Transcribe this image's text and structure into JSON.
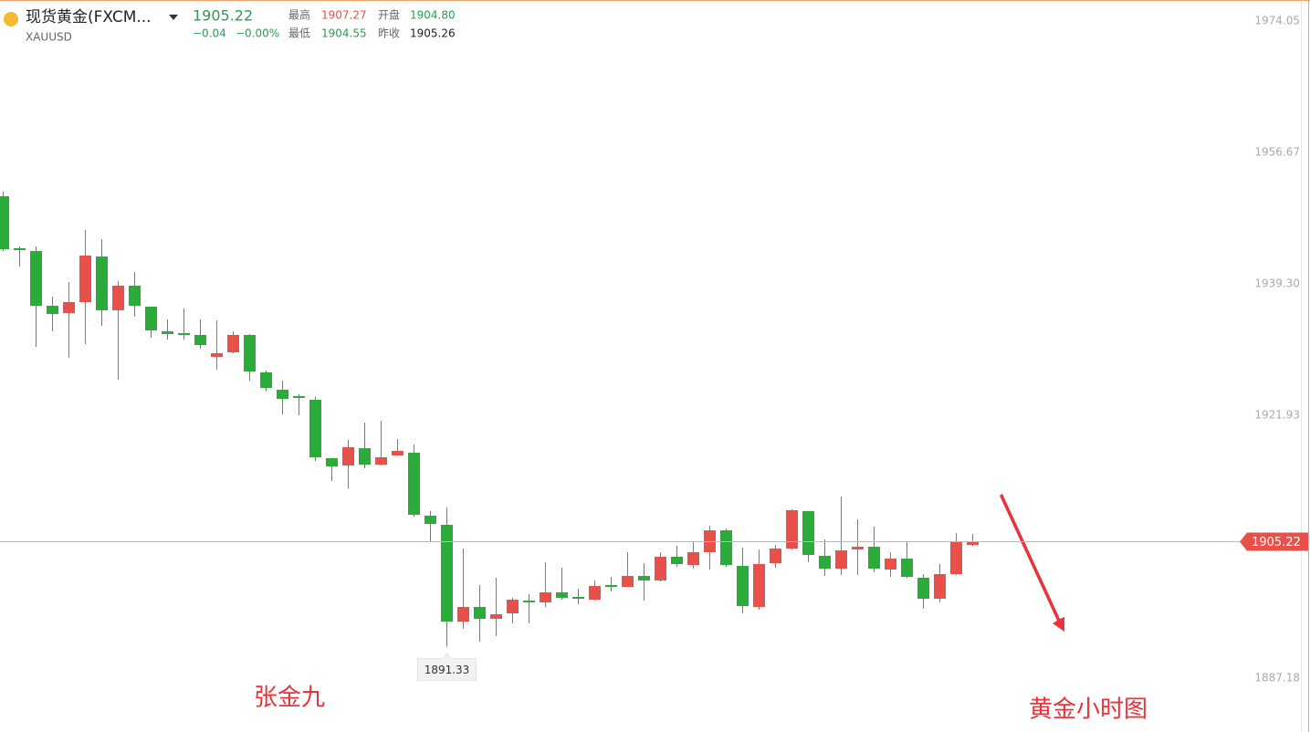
{
  "header": {
    "name": "现货黄金(FXCM...",
    "symbol": "XAUUSD",
    "price": "1905.22",
    "change": "−0.04",
    "change_pct": "−0.00%",
    "high_label": "最高",
    "high": "1907.27",
    "open_label": "开盘",
    "open": "1904.80",
    "low_label": "最低",
    "low": "1904.55",
    "prev_close_label": "昨收",
    "prev_close": "1905.26"
  },
  "chart_data": {
    "type": "candlestick",
    "up_color": "#e8504a",
    "down_color": "#2bab3a",
    "grid": false,
    "ylim": [
      1880.3,
      1976.83
    ],
    "yticks": [
      1974.05,
      1956.67,
      {
        "value": 1939.3,
        "label": "1939.30"
      },
      1921.93,
      1887.18
    ],
    "last_price": 1905.22,
    "min_label": 1891.33,
    "min_index": 27,
    "annotations": [
      "张金九",
      "黄金小时图"
    ],
    "open": [
      1950.89,
      1944.01,
      1943.65,
      1936.41,
      1935.44,
      1936.89,
      1942.92,
      1935.81,
      1939.06,
      1936.29,
      1933.03,
      1932.79,
      1932.55,
      1929.65,
      1930.25,
      1932.55,
      1927.6,
      1925.31,
      1924.46,
      1923.98,
      1916.26,
      1915.29,
      1917.58,
      1915.41,
      1916.62,
      1916.98,
      1908.66,
      1907.45,
      1894.66,
      1896.59,
      1895.02,
      1895.74,
      1897.43,
      1897.19,
      1898.52,
      1897.92,
      1897.55,
      1899.49,
      1899.24,
      1900.69,
      1900.09,
      1903.23,
      1902.14,
      1903.83,
      1906.72,
      1902.02,
      1896.59,
      1902.38,
      1904.31,
      1909.26,
      1903.35,
      1901.66,
      1904.19,
      1904.55,
      1901.54,
      1902.98,
      1900.45,
      1897.68,
      1900.93,
      1904.8
    ],
    "high": [
      1951.49,
      1944.25,
      1944.25,
      1937.61,
      1939.55,
      1946.42,
      1945.22,
      1939.67,
      1940.87,
      1936.29,
      1934.6,
      1936.05,
      1934.6,
      1934.48,
      1933.03,
      1932.67,
      1927.84,
      1926.51,
      1924.7,
      1924.34,
      1916.26,
      1918.67,
      1920.96,
      1921.2,
      1918.79,
      1918.07,
      1909.26,
      1909.74,
      1904.31,
      1899.49,
      1900.45,
      1897.8,
      1898.28,
      1902.5,
      1901.78,
      1899.0,
      1900.09,
      1900.57,
      1903.83,
      1902.38,
      1903.83,
      1904.67,
      1905.16,
      1907.33,
      1906.97,
      1904.43,
      1904.19,
      1904.79,
      1909.5,
      1909.26,
      1905.52,
      1911.19,
      1908.17,
      1907.21,
      1903.83,
      1905.16,
      1900.93,
      1902.26,
      1906.36,
      1906.24
    ],
    "low": [
      1943.65,
      1941.6,
      1930.98,
      1933.03,
      1929.53,
      1931.34,
      1933.75,
      1926.63,
      1934.96,
      1932.18,
      1931.94,
      1931.94,
      1930.74,
      1927.96,
      1930.13,
      1926.51,
      1925.07,
      1922.05,
      1921.93,
      1915.9,
      1913.24,
      1912.28,
      1914.93,
      1915.29,
      1916.62,
      1908.53,
      1905.28,
      1891.33,
      1893.69,
      1892.0,
      1892.73,
      1894.42,
      1894.42,
      1896.59,
      1897.55,
      1896.95,
      1897.43,
      1898.64,
      1899.24,
      1897.43,
      1899.97,
      1901.9,
      1901.66,
      1901.54,
      1901.9,
      1895.74,
      1896.23,
      1901.78,
      1904.19,
      1902.5,
      1900.69,
      1900.81,
      1900.81,
      1901.17,
      1900.57,
      1900.45,
      1896.35,
      1897.19,
      1900.81,
      1904.67
    ],
    "close": [
      1943.89,
      1943.77,
      1936.41,
      1935.32,
      1936.89,
      1943.04,
      1935.81,
      1939.06,
      1936.41,
      1933.15,
      1932.67,
      1932.55,
      1931.22,
      1930.13,
      1932.55,
      1927.72,
      1925.55,
      1924.1,
      1924.22,
      1916.38,
      1915.17,
      1917.71,
      1915.41,
      1916.38,
      1917.22,
      1908.78,
      1907.57,
      1894.66,
      1896.59,
      1895.02,
      1895.62,
      1897.55,
      1897.19,
      1898.52,
      1897.8,
      1897.68,
      1899.36,
      1899.24,
      1900.69,
      1900.09,
      1903.23,
      1902.26,
      1903.83,
      1906.72,
      1902.14,
      1896.71,
      1902.26,
      1904.31,
      1909.38,
      1903.47,
      1901.66,
      1904.07,
      1904.55,
      1901.66,
      1902.98,
      1900.57,
      1897.68,
      1900.93,
      1905.16,
      1905.22
    ]
  }
}
